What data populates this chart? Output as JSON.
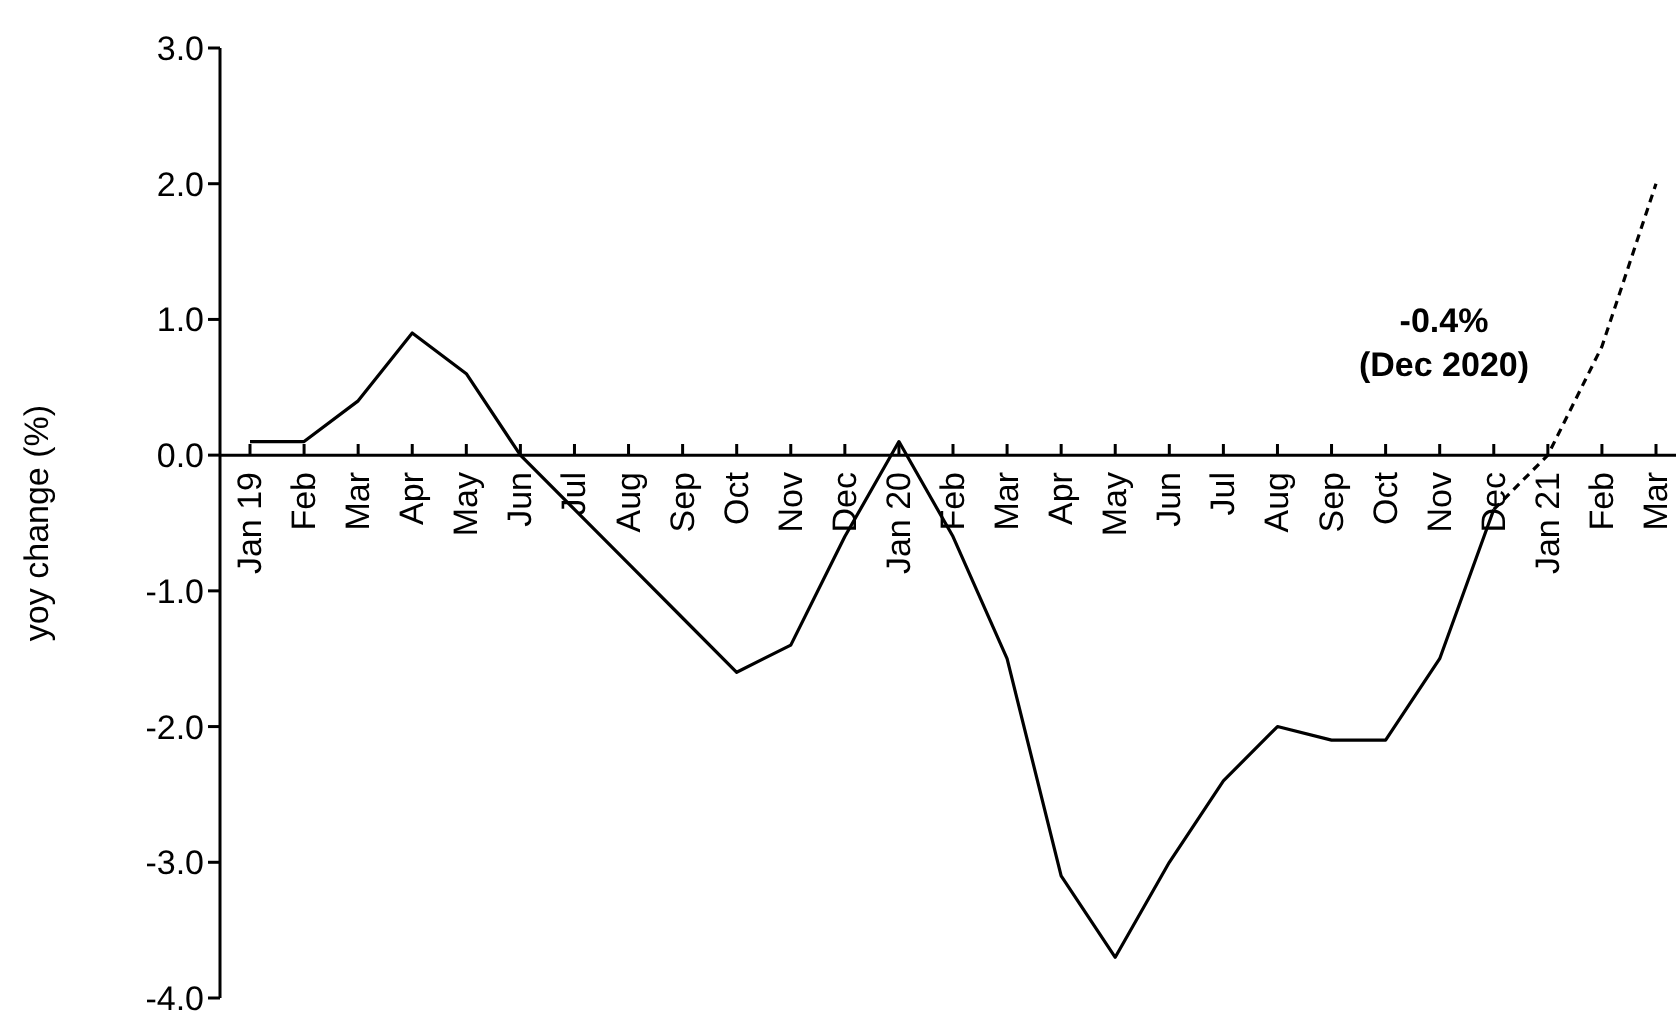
{
  "chart_data": {
    "type": "line",
    "ylabel": "yoy change (%)",
    "categories": [
      "Jan 19",
      "Feb",
      "Mar",
      "Apr",
      "May",
      "Jun",
      "Jul",
      "Aug",
      "Sep",
      "Oct",
      "Nov",
      "Dec",
      "Jan 20",
      "Feb",
      "Mar",
      "Apr",
      "May",
      "Jun",
      "Jul",
      "Aug",
      "Sep",
      "Oct",
      "Nov",
      "Dec",
      "Jan 21",
      "Feb",
      "Mar"
    ],
    "series": [
      {
        "color": "#000000",
        "line_style": "solid",
        "values": [
          0.1,
          0.1,
          0.4,
          0.9,
          0.6,
          0.0,
          -0.4,
          -0.8,
          -1.2,
          -1.6,
          -1.4,
          -0.6,
          0.1,
          -0.6,
          -1.5,
          -3.1,
          -3.7,
          -3.0,
          -2.4,
          -2.0,
          -2.1,
          -2.1,
          -1.5,
          -0.4,
          null,
          null,
          null
        ]
      },
      {
        "color": "#000000",
        "line_style": "dashed",
        "values": [
          null,
          null,
          null,
          null,
          null,
          null,
          null,
          null,
          null,
          null,
          null,
          null,
          null,
          null,
          null,
          null,
          null,
          null,
          null,
          null,
          null,
          null,
          null,
          -0.4,
          0.0,
          0.8,
          2.0
        ]
      }
    ],
    "ylim": [
      -4,
      3
    ],
    "yticks": [
      {
        "value": -4,
        "label": "-4.0"
      },
      {
        "value": -3,
        "label": "-3.0"
      },
      {
        "value": -2,
        "label": "-2.0"
      },
      {
        "value": -1,
        "label": "-1.0"
      },
      {
        "value": 0,
        "label": "0.0"
      },
      {
        "value": 1,
        "label": "1.0"
      },
      {
        "value": 2,
        "label": "2.0"
      },
      {
        "value": 3,
        "label": "3.0"
      }
    ],
    "annotations": [
      "-0.4%\n(Dec 2020)"
    ],
    "grid": false,
    "legend": false,
    "marker": "none"
  }
}
